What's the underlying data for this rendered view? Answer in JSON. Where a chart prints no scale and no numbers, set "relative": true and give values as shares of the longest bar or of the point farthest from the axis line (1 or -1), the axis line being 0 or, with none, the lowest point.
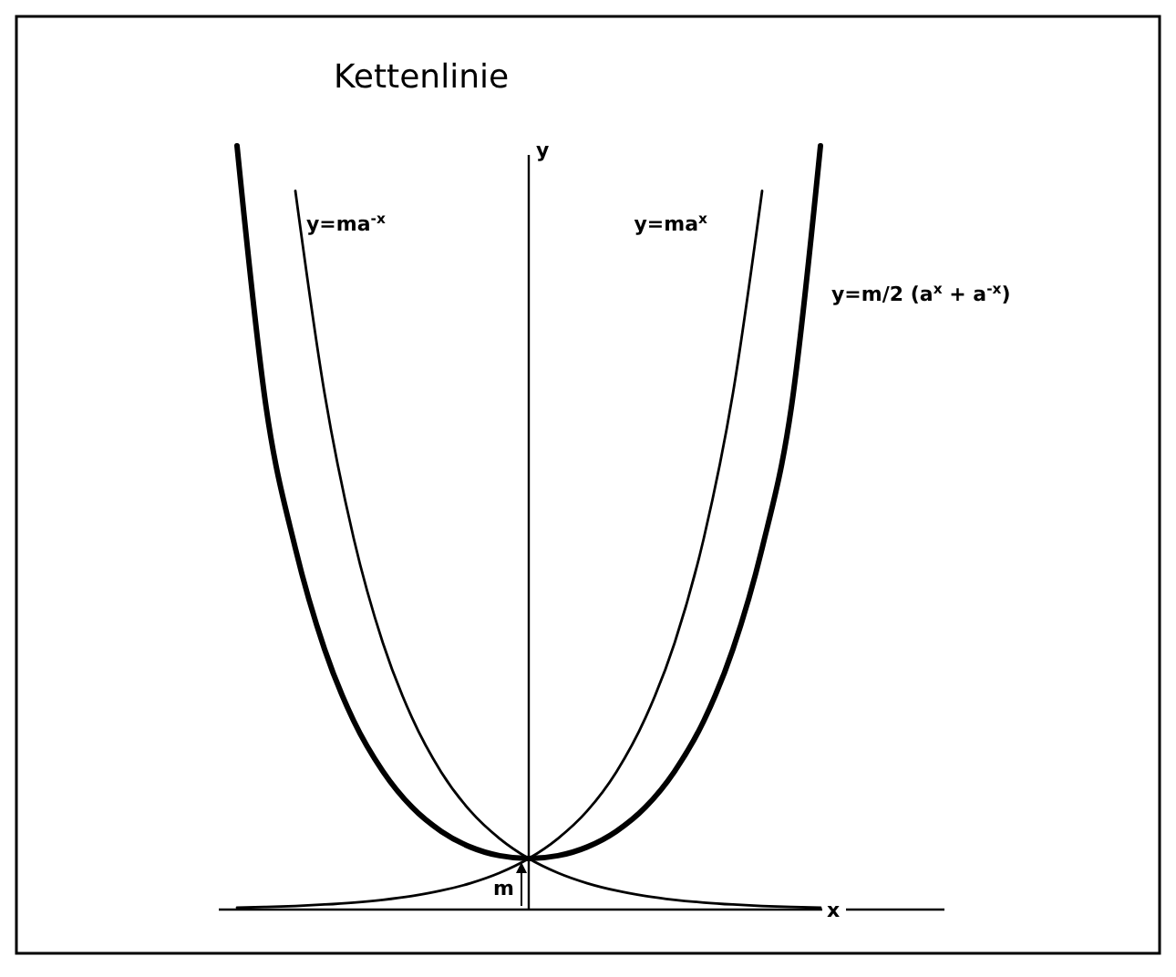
{
  "chart_data": {
    "type": "line",
    "title": "Kettenlinie",
    "xlabel": "x",
    "ylabel": "y",
    "relative": true,
    "legend": false,
    "marker": "none",
    "line_style": "solid",
    "annotations": [
      "m"
    ],
    "categories": [
      null,
      null,
      null,
      null,
      null,
      null,
      null,
      null,
      null,
      null,
      null,
      null,
      null,
      null,
      null,
      null,
      null,
      null,
      null,
      null,
      null
    ],
    "series": [
      {
        "name": "y=ma$^{-x}$",
        "color": "#000000",
        "values": [
          null,
          null,
          0.941,
          0.676,
          0.486,
          0.349,
          0.251,
          0.18,
          0.129,
          0.093,
          0.0668,
          0.048,
          0.0345,
          0.0248,
          0.0178,
          0.0128,
          0.0092,
          0.0066,
          0.0047,
          0.0034,
          0.0024
        ]
      },
      {
        "name": "y=ma$^{x}$",
        "color": "#000000",
        "values": [
          0.0024,
          0.0034,
          0.0047,
          0.0066,
          0.0092,
          0.0128,
          0.0178,
          0.0248,
          0.0345,
          0.048,
          0.0668,
          0.093,
          0.129,
          0.18,
          0.251,
          0.349,
          0.486,
          0.676,
          0.941,
          null,
          null
        ]
      },
      {
        "name": "y=m/2 (a$^{x}$ + a$^{-x}$)",
        "color": "#000000",
        "values": [
          1,
          0.657,
          0.473,
          0.341,
          0.247,
          0.181,
          0.134,
          0.1024,
          0.0819,
          0.0705,
          0.0668,
          0.0705,
          0.0819,
          0.1024,
          0.134,
          0.181,
          0.247,
          0.341,
          0.473,
          0.657,
          1
        ]
      }
    ]
  }
}
